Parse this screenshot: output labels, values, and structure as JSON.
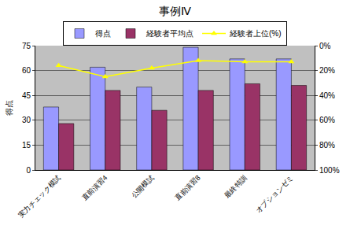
{
  "chart_data": {
    "type": "bar",
    "title": "事例Ⅳ",
    "y_label": "得点",
    "categories": [
      "実力チェック模試",
      "直前演習4",
      "公開模試",
      "直前演習8",
      "最終特訓",
      "オプションゼミ"
    ],
    "series": [
      {
        "name": "得点",
        "type": "bar",
        "color": "#9999ff",
        "values": [
          38,
          62,
          50,
          74,
          67,
          67
        ]
      },
      {
        "name": "経験者平均点",
        "type": "bar",
        "color": "#993366",
        "values": [
          28,
          48,
          36,
          48,
          52,
          51
        ]
      },
      {
        "name": "経験者上位(%)",
        "type": "line",
        "axis": "y2",
        "color": "#ffff00",
        "marker": "triangle-up",
        "values": [
          16,
          25,
          18,
          12,
          13,
          13
        ]
      }
    ],
    "ylim": [
      0,
      75
    ],
    "yticks": [
      0,
      15,
      30,
      45,
      60,
      75
    ],
    "y2lim": [
      100,
      0
    ],
    "y2ticks": [
      {
        "value": 0,
        "label": "0%"
      },
      {
        "value": 20,
        "label": "20%"
      },
      {
        "value": 40,
        "label": "40%"
      },
      {
        "value": 60,
        "label": "60%"
      },
      {
        "value": 80,
        "label": "80%"
      },
      {
        "value": 100,
        "label": "100%"
      }
    ],
    "grid": true,
    "legend": "top"
  }
}
